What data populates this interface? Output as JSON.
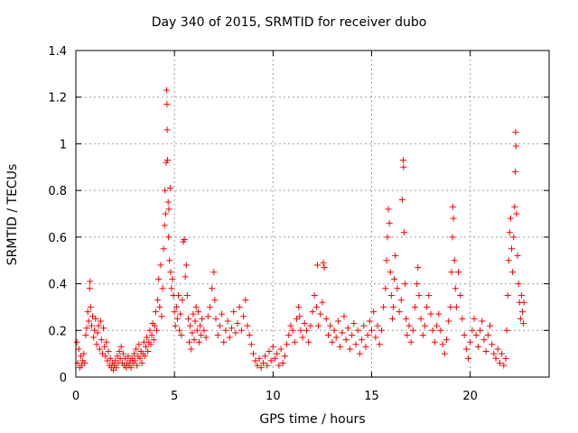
{
  "chart_data": {
    "type": "scatter",
    "title": "Day 340 of 2015, SRMTID for receiver dubo",
    "xlabel": "GPS time / hours",
    "ylabel": "SRMTID / TECUs",
    "xlim": [
      0,
      24
    ],
    "ylim": [
      0,
      1.4
    ],
    "grid": true,
    "marker": "+",
    "series_color": "#ff0000",
    "xticks": [
      {
        "value": 0,
        "label": "0"
      },
      {
        "value": 5,
        "label": "5"
      },
      {
        "value": 10,
        "label": "10"
      },
      {
        "value": 15,
        "label": "15"
      },
      {
        "value": 20,
        "label": "20"
      }
    ],
    "yticks": [
      {
        "value": 0,
        "label": "0"
      },
      {
        "value": 0.2,
        "label": "0.2"
      },
      {
        "value": 0.4,
        "label": "0.4"
      },
      {
        "value": 0.6,
        "label": "0.6"
      },
      {
        "value": 0.8,
        "label": "0.8"
      },
      {
        "value": 1.0,
        "label": "1"
      },
      {
        "value": 1.2,
        "label": "1.2"
      },
      {
        "value": 1.4,
        "label": "1.4"
      }
    ],
    "points": [
      [
        0.05,
        0.15
      ],
      [
        0.1,
        0.06
      ],
      [
        0.15,
        0.12
      ],
      [
        0.2,
        0.04
      ],
      [
        0.25,
        0.09
      ],
      [
        0.3,
        0.05
      ],
      [
        0.35,
        0.07
      ],
      [
        0.4,
        0.1
      ],
      [
        0.45,
        0.06
      ],
      [
        0.5,
        0.18
      ],
      [
        0.55,
        0.21
      ],
      [
        0.6,
        0.28
      ],
      [
        0.65,
        0.24
      ],
      [
        0.7,
        0.38
      ],
      [
        0.72,
        0.41
      ],
      [
        0.75,
        0.3
      ],
      [
        0.8,
        0.22
      ],
      [
        0.85,
        0.26
      ],
      [
        0.9,
        0.17
      ],
      [
        0.95,
        0.2
      ],
      [
        1.0,
        0.25
      ],
      [
        1.05,
        0.14
      ],
      [
        1.1,
        0.19
      ],
      [
        1.15,
        0.22
      ],
      [
        1.2,
        0.12
      ],
      [
        1.25,
        0.24
      ],
      [
        1.3,
        0.16
      ],
      [
        1.35,
        0.1
      ],
      [
        1.4,
        0.21
      ],
      [
        1.45,
        0.13
      ],
      [
        1.5,
        0.09
      ],
      [
        1.55,
        0.15
      ],
      [
        1.6,
        0.07
      ],
      [
        1.65,
        0.11
      ],
      [
        1.7,
        0.05
      ],
      [
        1.75,
        0.08
      ],
      [
        1.8,
        0.04
      ],
      [
        1.85,
        0.06
      ],
      [
        1.9,
        0.03
      ],
      [
        1.95,
        0.05
      ],
      [
        2.0,
        0.07
      ],
      [
        2.05,
        0.04
      ],
      [
        2.1,
        0.09
      ],
      [
        2.15,
        0.06
      ],
      [
        2.2,
        0.11
      ],
      [
        2.25,
        0.08
      ],
      [
        2.3,
        0.13
      ],
      [
        2.35,
        0.06
      ],
      [
        2.4,
        0.1
      ],
      [
        2.45,
        0.05
      ],
      [
        2.5,
        0.08
      ],
      [
        2.55,
        0.04
      ],
      [
        2.6,
        0.06
      ],
      [
        2.65,
        0.09
      ],
      [
        2.7,
        0.05
      ],
      [
        2.75,
        0.07
      ],
      [
        2.8,
        0.04
      ],
      [
        2.85,
        0.08
      ],
      [
        2.9,
        0.06
      ],
      [
        2.95,
        0.1
      ],
      [
        3.0,
        0.07
      ],
      [
        3.05,
        0.12
      ],
      [
        3.1,
        0.05
      ],
      [
        3.15,
        0.09
      ],
      [
        3.2,
        0.14
      ],
      [
        3.25,
        0.08
      ],
      [
        3.3,
        0.11
      ],
      [
        3.35,
        0.06
      ],
      [
        3.4,
        0.1
      ],
      [
        3.45,
        0.15
      ],
      [
        3.5,
        0.09
      ],
      [
        3.55,
        0.13
      ],
      [
        3.6,
        0.17
      ],
      [
        3.65,
        0.11
      ],
      [
        3.7,
        0.15
      ],
      [
        3.75,
        0.2
      ],
      [
        3.8,
        0.14
      ],
      [
        3.85,
        0.18
      ],
      [
        3.9,
        0.23
      ],
      [
        3.95,
        0.16
      ],
      [
        4.0,
        0.22
      ],
      [
        4.05,
        0.28
      ],
      [
        4.1,
        0.2
      ],
      [
        4.15,
        0.33
      ],
      [
        4.2,
        0.42
      ],
      [
        4.25,
        0.3
      ],
      [
        4.3,
        0.48
      ],
      [
        4.35,
        0.26
      ],
      [
        4.4,
        0.38
      ],
      [
        4.45,
        0.55
      ],
      [
        4.5,
        0.65
      ],
      [
        4.52,
        0.8
      ],
      [
        4.55,
        0.7
      ],
      [
        4.58,
        0.92
      ],
      [
        4.6,
        1.23
      ],
      [
        4.62,
        1.17
      ],
      [
        4.63,
        1.06
      ],
      [
        4.65,
        0.93
      ],
      [
        4.68,
        0.75
      ],
      [
        4.7,
        0.6
      ],
      [
        4.72,
        0.72
      ],
      [
        4.75,
        0.5
      ],
      [
        4.78,
        0.81
      ],
      [
        4.8,
        0.45
      ],
      [
        4.85,
        0.38
      ],
      [
        4.9,
        0.42
      ],
      [
        4.95,
        0.35
      ],
      [
        5.0,
        0.28
      ],
      [
        5.05,
        0.22
      ],
      [
        5.1,
        0.3
      ],
      [
        5.15,
        0.25
      ],
      [
        5.2,
        0.35
      ],
      [
        5.25,
        0.2
      ],
      [
        5.3,
        0.27
      ],
      [
        5.35,
        0.18
      ],
      [
        5.4,
        0.33
      ],
      [
        5.45,
        0.58
      ],
      [
        5.5,
        0.59
      ],
      [
        5.55,
        0.43
      ],
      [
        5.6,
        0.48
      ],
      [
        5.65,
        0.35
      ],
      [
        5.7,
        0.25
      ],
      [
        5.75,
        0.15
      ],
      [
        5.8,
        0.22
      ],
      [
        5.85,
        0.12
      ],
      [
        5.9,
        0.19
      ],
      [
        5.95,
        0.27
      ],
      [
        6.0,
        0.16
      ],
      [
        6.05,
        0.24
      ],
      [
        6.1,
        0.3
      ],
      [
        6.15,
        0.2
      ],
      [
        6.2,
        0.28
      ],
      [
        6.25,
        0.15
      ],
      [
        6.3,
        0.22
      ],
      [
        6.35,
        0.18
      ],
      [
        6.4,
        0.25
      ],
      [
        6.5,
        0.2
      ],
      [
        6.6,
        0.17
      ],
      [
        6.7,
        0.26
      ],
      [
        6.8,
        0.3
      ],
      [
        6.9,
        0.38
      ],
      [
        7.0,
        0.45
      ],
      [
        7.05,
        0.33
      ],
      [
        7.1,
        0.25
      ],
      [
        7.2,
        0.18
      ],
      [
        7.3,
        0.22
      ],
      [
        7.4,
        0.27
      ],
      [
        7.5,
        0.15
      ],
      [
        7.6,
        0.2
      ],
      [
        7.7,
        0.24
      ],
      [
        7.8,
        0.17
      ],
      [
        7.9,
        0.21
      ],
      [
        8.0,
        0.28
      ],
      [
        8.1,
        0.19
      ],
      [
        8.2,
        0.23
      ],
      [
        8.3,
        0.3
      ],
      [
        8.4,
        0.2
      ],
      [
        8.5,
        0.26
      ],
      [
        8.6,
        0.33
      ],
      [
        8.7,
        0.22
      ],
      [
        8.8,
        0.18
      ],
      [
        8.9,
        0.14
      ],
      [
        9.0,
        0.1
      ],
      [
        9.1,
        0.07
      ],
      [
        9.2,
        0.05
      ],
      [
        9.3,
        0.08
      ],
      [
        9.4,
        0.04
      ],
      [
        9.5,
        0.06
      ],
      [
        9.6,
        0.09
      ],
      [
        9.7,
        0.05
      ],
      [
        9.8,
        0.11
      ],
      [
        9.9,
        0.07
      ],
      [
        10.0,
        0.13
      ],
      [
        10.1,
        0.08
      ],
      [
        10.2,
        0.1
      ],
      [
        10.3,
        0.05
      ],
      [
        10.4,
        0.12
      ],
      [
        10.5,
        0.06
      ],
      [
        10.6,
        0.09
      ],
      [
        10.7,
        0.14
      ],
      [
        10.8,
        0.18
      ],
      [
        10.9,
        0.22
      ],
      [
        11.0,
        0.2
      ],
      [
        11.1,
        0.15
      ],
      [
        11.2,
        0.25
      ],
      [
        11.3,
        0.3
      ],
      [
        11.35,
        0.26
      ],
      [
        11.4,
        0.2
      ],
      [
        11.5,
        0.17
      ],
      [
        11.6,
        0.23
      ],
      [
        11.7,
        0.2
      ],
      [
        11.8,
        0.15
      ],
      [
        11.9,
        0.22
      ],
      [
        12.0,
        0.28
      ],
      [
        12.1,
        0.35
      ],
      [
        12.2,
        0.3
      ],
      [
        12.25,
        0.48
      ],
      [
        12.3,
        0.22
      ],
      [
        12.4,
        0.27
      ],
      [
        12.5,
        0.32
      ],
      [
        12.55,
        0.49
      ],
      [
        12.6,
        0.47
      ],
      [
        12.7,
        0.25
      ],
      [
        12.8,
        0.18
      ],
      [
        12.9,
        0.22
      ],
      [
        13.0,
        0.15
      ],
      [
        13.1,
        0.2
      ],
      [
        13.2,
        0.17
      ],
      [
        13.3,
        0.24
      ],
      [
        13.4,
        0.13
      ],
      [
        13.5,
        0.19
      ],
      [
        13.6,
        0.26
      ],
      [
        13.7,
        0.16
      ],
      [
        13.8,
        0.21
      ],
      [
        13.9,
        0.12
      ],
      [
        14.0,
        0.18
      ],
      [
        14.1,
        0.23
      ],
      [
        14.2,
        0.14
      ],
      [
        14.3,
        0.2
      ],
      [
        14.4,
        0.1
      ],
      [
        14.5,
        0.16
      ],
      [
        14.6,
        0.22
      ],
      [
        14.7,
        0.13
      ],
      [
        14.8,
        0.18
      ],
      [
        14.9,
        0.24
      ],
      [
        15.0,
        0.2
      ],
      [
        15.1,
        0.28
      ],
      [
        15.2,
        0.17
      ],
      [
        15.3,
        0.22
      ],
      [
        15.4,
        0.14
      ],
      [
        15.5,
        0.2
      ],
      [
        15.6,
        0.3
      ],
      [
        15.7,
        0.38
      ],
      [
        15.75,
        0.5
      ],
      [
        15.8,
        0.6
      ],
      [
        15.85,
        0.72
      ],
      [
        15.9,
        0.66
      ],
      [
        15.95,
        0.45
      ],
      [
        16.0,
        0.35
      ],
      [
        16.05,
        0.25
      ],
      [
        16.1,
        0.3
      ],
      [
        16.15,
        0.42
      ],
      [
        16.2,
        0.52
      ],
      [
        16.3,
        0.38
      ],
      [
        16.4,
        0.28
      ],
      [
        16.5,
        0.33
      ],
      [
        16.55,
        0.76
      ],
      [
        16.6,
        0.93
      ],
      [
        16.62,
        0.9
      ],
      [
        16.65,
        0.62
      ],
      [
        16.7,
        0.4
      ],
      [
        16.75,
        0.25
      ],
      [
        16.8,
        0.18
      ],
      [
        16.9,
        0.22
      ],
      [
        17.0,
        0.15
      ],
      [
        17.1,
        0.2
      ],
      [
        17.2,
        0.3
      ],
      [
        17.3,
        0.4
      ],
      [
        17.35,
        0.47
      ],
      [
        17.4,
        0.35
      ],
      [
        17.5,
        0.25
      ],
      [
        17.6,
        0.18
      ],
      [
        17.7,
        0.22
      ],
      [
        17.8,
        0.3
      ],
      [
        17.9,
        0.35
      ],
      [
        18.0,
        0.27
      ],
      [
        18.1,
        0.2
      ],
      [
        18.2,
        0.15
      ],
      [
        18.3,
        0.22
      ],
      [
        18.4,
        0.27
      ],
      [
        18.5,
        0.2
      ],
      [
        18.6,
        0.14
      ],
      [
        18.7,
        0.1
      ],
      [
        18.8,
        0.16
      ],
      [
        18.9,
        0.24
      ],
      [
        19.0,
        0.3
      ],
      [
        19.05,
        0.45
      ],
      [
        19.1,
        0.6
      ],
      [
        19.12,
        0.73
      ],
      [
        19.15,
        0.68
      ],
      [
        19.2,
        0.5
      ],
      [
        19.25,
        0.38
      ],
      [
        19.3,
        0.3
      ],
      [
        19.4,
        0.45
      ],
      [
        19.5,
        0.35
      ],
      [
        19.6,
        0.25
      ],
      [
        19.7,
        0.18
      ],
      [
        19.8,
        0.12
      ],
      [
        19.9,
        0.08
      ],
      [
        20.0,
        0.15
      ],
      [
        20.1,
        0.2
      ],
      [
        20.2,
        0.25
      ],
      [
        20.3,
        0.18
      ],
      [
        20.4,
        0.13
      ],
      [
        20.5,
        0.2
      ],
      [
        20.6,
        0.24
      ],
      [
        20.7,
        0.16
      ],
      [
        20.8,
        0.11
      ],
      [
        20.9,
        0.18
      ],
      [
        21.0,
        0.22
      ],
      [
        21.1,
        0.14
      ],
      [
        21.2,
        0.1
      ],
      [
        21.3,
        0.08
      ],
      [
        21.4,
        0.12
      ],
      [
        21.5,
        0.06
      ],
      [
        21.6,
        0.1
      ],
      [
        21.7,
        0.05
      ],
      [
        21.8,
        0.08
      ],
      [
        21.85,
        0.2
      ],
      [
        21.9,
        0.35
      ],
      [
        21.95,
        0.5
      ],
      [
        22.0,
        0.62
      ],
      [
        22.05,
        0.68
      ],
      [
        22.1,
        0.55
      ],
      [
        22.15,
        0.45
      ],
      [
        22.2,
        0.6
      ],
      [
        22.25,
        0.73
      ],
      [
        22.28,
        0.88
      ],
      [
        22.3,
        1.05
      ],
      [
        22.32,
        0.99
      ],
      [
        22.35,
        0.7
      ],
      [
        22.4,
        0.52
      ],
      [
        22.45,
        0.4
      ],
      [
        22.5,
        0.32
      ],
      [
        22.55,
        0.25
      ],
      [
        22.6,
        0.35
      ],
      [
        22.65,
        0.28
      ],
      [
        22.7,
        0.23
      ],
      [
        22.72,
        0.32
      ]
    ]
  }
}
